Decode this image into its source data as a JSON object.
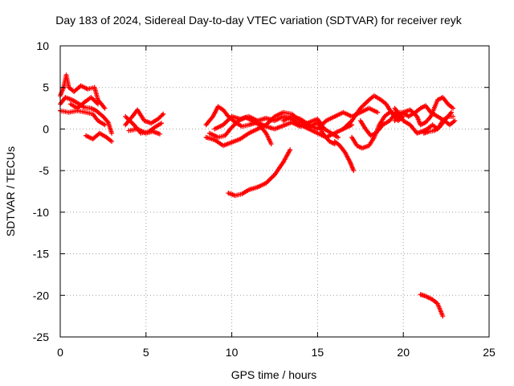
{
  "chart_data": {
    "type": "scatter",
    "title": "Day 183 of 2024, Sidereal Day-to-day VTEC variation (SDTVAR) for receiver reyk",
    "xlabel": "GPS time / hours",
    "ylabel": "SDTVAR / TECUs",
    "xlim": [
      0,
      25
    ],
    "ylim": [
      -25,
      10
    ],
    "xticks": [
      0,
      5,
      10,
      15,
      20,
      25
    ],
    "yticks": [
      10,
      5,
      0,
      -5,
      -10,
      -15,
      -20,
      -25
    ],
    "grid": true,
    "marker": "+",
    "colors": {
      "series": "#ff0000",
      "grid": "#a0a0a0",
      "axis": "#000000"
    },
    "tracks": [
      {
        "name": "early-1",
        "points": [
          [
            0.0,
            4.0
          ],
          [
            0.2,
            5.0
          ],
          [
            0.35,
            6.5
          ],
          [
            0.5,
            5.0
          ],
          [
            0.8,
            4.5
          ],
          [
            1.2,
            5.2
          ],
          [
            1.6,
            4.8
          ],
          [
            2.0,
            5.0
          ],
          [
            2.2,
            3.5
          ],
          [
            2.6,
            2.5
          ]
        ]
      },
      {
        "name": "early-2",
        "points": [
          [
            0.0,
            3.0
          ],
          [
            0.3,
            3.8
          ],
          [
            0.7,
            3.5
          ],
          [
            1.1,
            3.0
          ],
          [
            1.4,
            2.6
          ],
          [
            1.8,
            2.5
          ],
          [
            2.1,
            2.2
          ],
          [
            2.5,
            1.5
          ],
          [
            2.8,
            0.8
          ],
          [
            3.0,
            -0.5
          ]
        ]
      },
      {
        "name": "early-3",
        "points": [
          [
            0.0,
            2.2
          ],
          [
            0.5,
            2.0
          ],
          [
            1.0,
            2.2
          ],
          [
            1.5,
            2.0
          ],
          [
            1.9,
            1.8
          ],
          [
            2.2,
            1.0
          ],
          [
            2.6,
            0.5
          ]
        ]
      },
      {
        "name": "early-4",
        "points": [
          [
            1.5,
            -0.8
          ],
          [
            1.9,
            -1.2
          ],
          [
            2.3,
            -0.5
          ],
          [
            2.7,
            -1.0
          ],
          [
            3.0,
            -1.5
          ]
        ]
      },
      {
        "name": "early-5",
        "points": [
          [
            0.6,
            3.0
          ],
          [
            1.0,
            2.5
          ],
          [
            1.4,
            3.2
          ],
          [
            1.8,
            3.8
          ],
          [
            2.2,
            3.0
          ]
        ]
      },
      {
        "name": "mid-1",
        "points": [
          [
            3.8,
            0.5
          ],
          [
            4.2,
            1.5
          ],
          [
            4.5,
            2.3
          ],
          [
            4.9,
            1.0
          ],
          [
            5.3,
            0.7
          ],
          [
            5.7,
            1.2
          ],
          [
            6.0,
            1.8
          ]
        ]
      },
      {
        "name": "mid-2",
        "points": [
          [
            3.8,
            1.5
          ],
          [
            4.3,
            0.5
          ],
          [
            4.7,
            -0.5
          ],
          [
            5.1,
            -0.4
          ],
          [
            5.5,
            0.2
          ],
          [
            5.9,
            0.7
          ]
        ]
      },
      {
        "name": "mid-3",
        "points": [
          [
            4.0,
            -0.2
          ],
          [
            4.5,
            0.0
          ],
          [
            5.0,
            -0.5
          ],
          [
            5.4,
            -0.3
          ],
          [
            5.8,
            -0.6
          ]
        ]
      },
      {
        "name": "main-1",
        "points": [
          [
            8.5,
            -1.0
          ],
          [
            9.0,
            -1.3
          ],
          [
            9.5,
            -2.0
          ],
          [
            10.0,
            -1.6
          ],
          [
            10.5,
            -1.2
          ],
          [
            11.0,
            -0.5
          ],
          [
            11.5,
            0.0
          ],
          [
            12.0,
            0.5
          ],
          [
            12.5,
            1.5
          ],
          [
            13.0,
            2.0
          ],
          [
            13.5,
            1.8
          ],
          [
            14.0,
            1.0
          ],
          [
            14.5,
            0.2
          ],
          [
            15.0,
            0.8
          ],
          [
            15.3,
            -0.5
          ],
          [
            15.7,
            -1.5
          ],
          [
            16.0,
            -1.8
          ]
        ]
      },
      {
        "name": "main-2",
        "points": [
          [
            8.5,
            0.5
          ],
          [
            8.9,
            1.5
          ],
          [
            9.2,
            2.7
          ],
          [
            9.5,
            2.3
          ],
          [
            9.8,
            1.5
          ],
          [
            10.2,
            0.8
          ],
          [
            10.6,
            0.3
          ],
          [
            11.0,
            0.5
          ],
          [
            11.5,
            0.8
          ],
          [
            12.0,
            0.3
          ],
          [
            12.5,
            0.0
          ],
          [
            13.0,
            0.4
          ],
          [
            13.5,
            0.8
          ],
          [
            14.0,
            0.3
          ],
          [
            14.5,
            0.8
          ],
          [
            15.0,
            1.2
          ],
          [
            15.4,
            0.0
          ],
          [
            15.8,
            -0.5
          ],
          [
            16.2,
            -1.0
          ]
        ]
      },
      {
        "name": "main-3",
        "points": [
          [
            8.7,
            -0.5
          ],
          [
            9.2,
            -1.0
          ],
          [
            9.6,
            -0.8
          ],
          [
            10.0,
            0.2
          ],
          [
            10.4,
            1.0
          ],
          [
            10.8,
            1.4
          ],
          [
            11.2,
            1.0
          ],
          [
            11.6,
            0.5
          ],
          [
            12.0,
            -0.5
          ],
          [
            12.3,
            -1.8
          ]
        ]
      },
      {
        "name": "main-4",
        "points": [
          [
            9.0,
            0.0
          ],
          [
            9.5,
            0.5
          ],
          [
            10.0,
            1.5
          ],
          [
            10.5,
            1.2
          ],
          [
            11.0,
            1.5
          ],
          [
            11.5,
            1.0
          ],
          [
            12.0,
            1.3
          ],
          [
            12.5,
            1.0
          ],
          [
            13.0,
            1.5
          ],
          [
            13.5,
            1.2
          ],
          [
            14.0,
            0.5
          ],
          [
            14.5,
            0.0
          ],
          [
            15.0,
            -0.5
          ],
          [
            15.5,
            -1.0
          ],
          [
            16.0,
            -0.5
          ],
          [
            16.5,
            0.0
          ],
          [
            17.0,
            0.5
          ]
        ]
      },
      {
        "name": "main-5",
        "points": [
          [
            13.0,
            1.0
          ],
          [
            13.5,
            1.5
          ],
          [
            14.0,
            1.2
          ],
          [
            14.5,
            0.5
          ],
          [
            15.0,
            0.0
          ],
          [
            15.5,
            1.0
          ],
          [
            16.0,
            1.5
          ],
          [
            16.5,
            2.0
          ],
          [
            17.0,
            1.5
          ],
          [
            17.5,
            2.0
          ],
          [
            18.0,
            2.5
          ],
          [
            18.5,
            2.0
          ]
        ]
      },
      {
        "name": "main-6",
        "points": [
          [
            16.0,
            -1.5
          ],
          [
            16.3,
            -2.0
          ],
          [
            16.6,
            -2.8
          ],
          [
            16.9,
            -4.0
          ],
          [
            17.1,
            -5.0
          ]
        ]
      },
      {
        "name": "main-7",
        "points": [
          [
            16.5,
            0.0
          ],
          [
            17.0,
            1.0
          ],
          [
            17.5,
            2.5
          ],
          [
            18.0,
            3.5
          ],
          [
            18.3,
            4.0
          ],
          [
            18.7,
            3.5
          ],
          [
            19.0,
            3.0
          ],
          [
            19.3,
            2.0
          ],
          [
            19.7,
            1.0
          ],
          [
            20.0,
            1.5
          ]
        ]
      },
      {
        "name": "main-8",
        "points": [
          [
            17.0,
            -1.0
          ],
          [
            17.3,
            -2.0
          ],
          [
            17.6,
            -2.3
          ],
          [
            18.0,
            -2.0
          ],
          [
            18.3,
            -1.0
          ],
          [
            18.6,
            0.5
          ],
          [
            18.9,
            1.5
          ],
          [
            19.2,
            2.0
          ],
          [
            19.5,
            2.0
          ],
          [
            19.8,
            1.5
          ]
        ]
      },
      {
        "name": "main-9",
        "points": [
          [
            17.5,
            1.0
          ],
          [
            17.8,
            0.0
          ],
          [
            18.1,
            -0.8
          ],
          [
            18.4,
            -0.5
          ],
          [
            18.8,
            0.5
          ],
          [
            19.2,
            1.0
          ],
          [
            19.6,
            2.0
          ],
          [
            20.0,
            2.0
          ]
        ]
      },
      {
        "name": "late-1",
        "points": [
          [
            19.5,
            1.0
          ],
          [
            20.0,
            2.0
          ],
          [
            20.4,
            2.3
          ],
          [
            20.8,
            1.5
          ],
          [
            21.0,
            0.5
          ],
          [
            21.3,
            0.8
          ],
          [
            21.6,
            1.5
          ],
          [
            22.0,
            3.5
          ],
          [
            22.3,
            3.8
          ],
          [
            22.6,
            3.0
          ],
          [
            22.9,
            2.5
          ]
        ]
      },
      {
        "name": "late-2",
        "points": [
          [
            19.5,
            2.5
          ],
          [
            20.0,
            1.0
          ],
          [
            20.4,
            0.5
          ],
          [
            20.8,
            -0.5
          ],
          [
            21.1,
            -0.3
          ],
          [
            21.4,
            0.0
          ],
          [
            21.7,
            0.5
          ],
          [
            22.0,
            0.0
          ],
          [
            22.3,
            1.0
          ],
          [
            22.6,
            1.5
          ],
          [
            22.9,
            1.5
          ]
        ]
      },
      {
        "name": "late-3",
        "points": [
          [
            20.0,
            2.0
          ],
          [
            20.3,
            1.5
          ],
          [
            20.7,
            2.0
          ],
          [
            21.0,
            2.5
          ],
          [
            21.3,
            2.8
          ],
          [
            21.6,
            2.0
          ],
          [
            22.0,
            1.5
          ],
          [
            22.4,
            1.0
          ],
          [
            22.8,
            2.0
          ]
        ]
      },
      {
        "name": "late-4",
        "points": [
          [
            21.2,
            -0.5
          ],
          [
            21.5,
            -0.3
          ],
          [
            21.8,
            -0.2
          ],
          [
            22.1,
            0.2
          ],
          [
            22.4,
            1.0
          ],
          [
            22.7,
            0.5
          ],
          [
            23.0,
            1.0
          ]
        ]
      },
      {
        "name": "lower-arc",
        "points": [
          [
            9.8,
            -7.7
          ],
          [
            10.2,
            -8.0
          ],
          [
            10.6,
            -7.8
          ],
          [
            11.0,
            -7.3
          ],
          [
            11.5,
            -7.0
          ],
          [
            12.0,
            -6.5
          ],
          [
            12.5,
            -5.5
          ],
          [
            13.0,
            -4.0
          ],
          [
            13.4,
            -2.5
          ]
        ]
      },
      {
        "name": "bottom-segment",
        "points": [
          [
            21.0,
            -19.9
          ],
          [
            21.3,
            -20.1
          ],
          [
            21.7,
            -20.5
          ],
          [
            22.0,
            -21.0
          ],
          [
            22.3,
            -22.5
          ]
        ]
      }
    ]
  }
}
